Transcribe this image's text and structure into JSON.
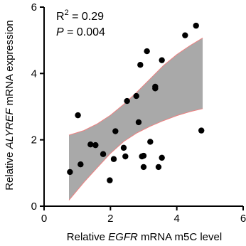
{
  "chart_data": {
    "type": "scatter",
    "xlabel": "Relative EGFR mRNA m5C level",
    "xlabel_parts": {
      "prefix": "Relative ",
      "gene": "EGFR",
      "suffix": " mRNA m5C level"
    },
    "ylabel": "Relative ALYREF mRNA expression",
    "ylabel_parts": {
      "prefix": "Relative ",
      "gene": "ALYREF",
      "suffix": " mRNA expression"
    },
    "xlim": [
      0,
      6
    ],
    "ylim": [
      0,
      6
    ],
    "x_ticks": [
      0,
      2,
      4,
      6
    ],
    "y_ticks": [
      0,
      2,
      4,
      6
    ],
    "annotations": {
      "r2_label": "R",
      "r2_sup": "2",
      "r2_value": " = 0.29",
      "p_label": "P",
      "p_value": " = 0.004"
    },
    "points": [
      {
        "x": 0.78,
        "y": 1.03
      },
      {
        "x": 1.02,
        "y": 2.74
      },
      {
        "x": 1.1,
        "y": 1.26
      },
      {
        "x": 1.4,
        "y": 1.86
      },
      {
        "x": 1.55,
        "y": 1.84
      },
      {
        "x": 1.78,
        "y": 1.57
      },
      {
        "x": 1.98,
        "y": 0.78
      },
      {
        "x": 2.1,
        "y": 1.42
      },
      {
        "x": 2.15,
        "y": 2.26
      },
      {
        "x": 2.4,
        "y": 1.76
      },
      {
        "x": 2.45,
        "y": 1.5
      },
      {
        "x": 2.5,
        "y": 3.17
      },
      {
        "x": 2.78,
        "y": 3.32
      },
      {
        "x": 2.85,
        "y": 2.53
      },
      {
        "x": 2.9,
        "y": 4.26
      },
      {
        "x": 2.95,
        "y": 1.5
      },
      {
        "x": 3.0,
        "y": 1.52
      },
      {
        "x": 3.0,
        "y": 1.18
      },
      {
        "x": 3.1,
        "y": 4.67
      },
      {
        "x": 3.2,
        "y": 1.94
      },
      {
        "x": 3.35,
        "y": 3.6
      },
      {
        "x": 3.35,
        "y": 3.55
      },
      {
        "x": 3.45,
        "y": 1.18
      },
      {
        "x": 3.55,
        "y": 4.4
      },
      {
        "x": 3.55,
        "y": 1.46
      },
      {
        "x": 4.25,
        "y": 5.15
      },
      {
        "x": 4.58,
        "y": 5.44
      },
      {
        "x": 4.74,
        "y": 2.28
      }
    ],
    "regression": {
      "x_start": 0.75,
      "x_end": 4.78,
      "upper": [
        {
          "x": 0.75,
          "y": 2.14
        },
        {
          "x": 1.2,
          "y": 2.28
        },
        {
          "x": 1.6,
          "y": 2.48
        },
        {
          "x": 2.0,
          "y": 2.74
        },
        {
          "x": 2.4,
          "y": 3.07
        },
        {
          "x": 2.8,
          "y": 3.44
        },
        {
          "x": 3.2,
          "y": 3.84
        },
        {
          "x": 3.6,
          "y": 4.24
        },
        {
          "x": 4.0,
          "y": 4.57
        },
        {
          "x": 4.4,
          "y": 4.84
        },
        {
          "x": 4.78,
          "y": 5.07
        }
      ],
      "lower": [
        {
          "x": 0.75,
          "y": 0.18
        },
        {
          "x": 1.2,
          "y": 0.72
        },
        {
          "x": 1.6,
          "y": 1.16
        },
        {
          "x": 2.0,
          "y": 1.59
        },
        {
          "x": 2.4,
          "y": 1.95
        },
        {
          "x": 2.8,
          "y": 2.21
        },
        {
          "x": 3.2,
          "y": 2.41
        },
        {
          "x": 3.6,
          "y": 2.58
        },
        {
          "x": 4.0,
          "y": 2.73
        },
        {
          "x": 4.4,
          "y": 2.85
        },
        {
          "x": 4.78,
          "y": 2.94
        }
      ]
    },
    "colors": {
      "band_fill": "#a9a9a9",
      "band_edge": "#f08080",
      "point": "#000000",
      "axis": "#000000"
    }
  }
}
